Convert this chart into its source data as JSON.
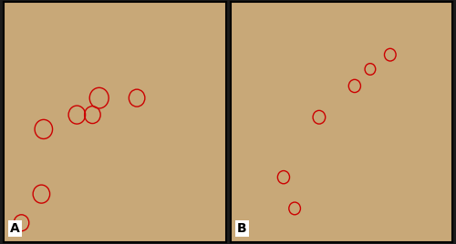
{
  "fig_width": 5.0,
  "fig_height": 2.68,
  "dpi": 100,
  "background_color": "#1c1c1c",
  "label_A": "A",
  "label_B": "B",
  "label_fontsize": 10,
  "label_color": "#000000",
  "label_bg": "#ffffff",
  "panel_border_color": "#000000",
  "panel_border_lw": 1.5,
  "circle_color": "#cc0000",
  "circle_linewidth": 1.0,
  "circles_A": [
    [
      0.43,
      0.6,
      0.043
    ],
    [
      0.33,
      0.53,
      0.038
    ],
    [
      0.4,
      0.53,
      0.036
    ],
    [
      0.6,
      0.6,
      0.036
    ],
    [
      0.18,
      0.47,
      0.04
    ],
    [
      0.17,
      0.2,
      0.038
    ],
    [
      0.08,
      0.08,
      0.034
    ]
  ],
  "circles_B": [
    [
      0.72,
      0.78,
      0.026
    ],
    [
      0.63,
      0.72,
      0.024
    ],
    [
      0.56,
      0.65,
      0.027
    ],
    [
      0.4,
      0.52,
      0.028
    ],
    [
      0.24,
      0.27,
      0.027
    ],
    [
      0.29,
      0.14,
      0.026
    ]
  ],
  "outer_border_lw": 3.0,
  "wspace": 0.025
}
